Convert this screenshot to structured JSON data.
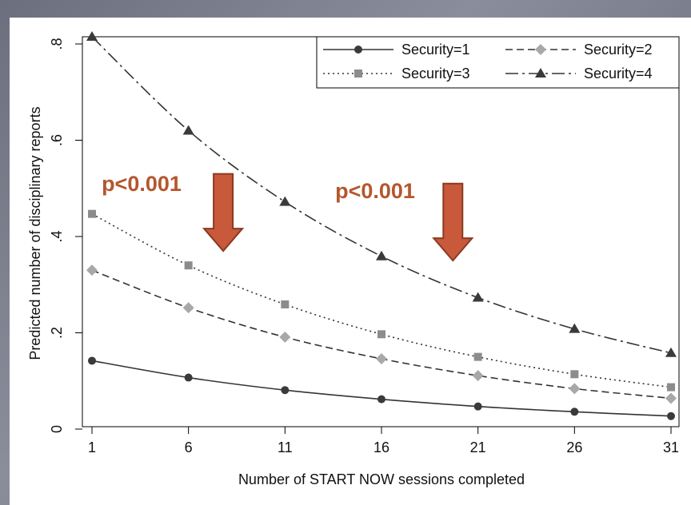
{
  "colors": {
    "series": "#333333",
    "security1_marker": "#3a3a3a",
    "security2_marker": "#a8a8a8",
    "security3_marker": "#8c8c8c",
    "security4_marker": "#3a3a3a",
    "arrow_fill": "#c8593a",
    "arrow_stroke": "#8a3a22",
    "annotation_text": "#b4572e"
  },
  "chart_data": {
    "type": "line",
    "title": "",
    "xlabel": "Number of START NOW sessions completed",
    "ylabel": "Predicted number of disciplinary reports",
    "x": [
      1,
      6,
      11,
      16,
      21,
      26,
      31
    ],
    "x_tick_labels": [
      "1",
      "6",
      "11",
      "16",
      "21",
      "26",
      "31"
    ],
    "y_ticks": [
      0,
      0.2,
      0.4,
      0.6,
      0.8
    ],
    "y_tick_labels": [
      "0",
      ".2",
      ".4",
      ".6",
      ".8"
    ],
    "xlim": [
      1,
      31
    ],
    "ylim": [
      0,
      0.8
    ],
    "grid": false,
    "legend_position": "top-right",
    "series": [
      {
        "name": "Security=1",
        "marker": "circle",
        "line": "solid",
        "values": [
          0.142,
          0.107,
          0.081,
          0.062,
          0.047,
          0.036,
          0.027
        ]
      },
      {
        "name": "Security=2",
        "marker": "diamond",
        "line": "dashed",
        "values": [
          0.33,
          0.252,
          0.191,
          0.146,
          0.111,
          0.084,
          0.064
        ]
      },
      {
        "name": "Security=3",
        "marker": "square",
        "line": "dotted",
        "values": [
          0.447,
          0.34,
          0.259,
          0.197,
          0.15,
          0.114,
          0.087
        ]
      },
      {
        "name": "Security=4",
        "marker": "triangle",
        "line": "dashdot",
        "values": [
          0.815,
          0.62,
          0.472,
          0.359,
          0.273,
          0.208,
          0.158
        ]
      }
    ],
    "annotations": [
      {
        "text": "p<0.001",
        "arrow_x": 7.8,
        "arrow_y_top": 0.53,
        "arrow_y_bottom": 0.37,
        "text_x": 1.5,
        "text_y": 0.495
      },
      {
        "text": "p<0.001",
        "arrow_x": 19.7,
        "arrow_y_top": 0.51,
        "arrow_y_bottom": 0.35,
        "text_x": 13.6,
        "text_y": 0.48
      }
    ]
  }
}
